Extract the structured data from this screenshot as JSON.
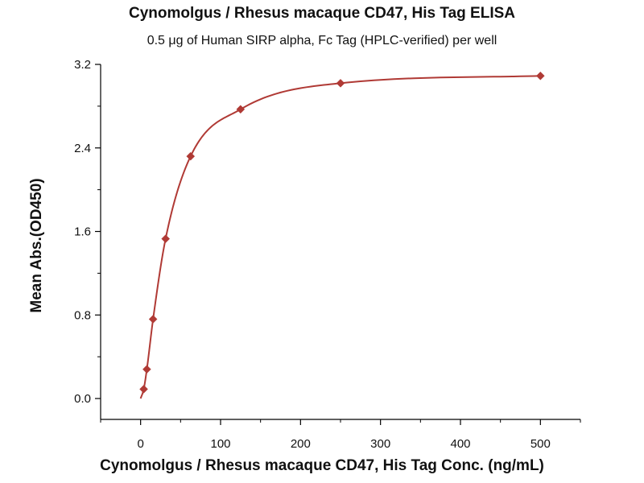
{
  "chart_data": {
    "type": "scatter",
    "title": "Cynomolgus / Rhesus macaque CD47, His Tag ELISA",
    "subtitle": "0.5 μg of Human SIRP alpha, Fc Tag (HPLC-verified) per well",
    "xlabel": "Cynomolgus / Rhesus macaque CD47, His Tag Conc. (ng/mL)",
    "ylabel": "Mean Abs.(OD450)",
    "xlim": [
      -50,
      550
    ],
    "ylim": [
      -0.2,
      3.2
    ],
    "x_ticks": [
      0,
      100,
      200,
      300,
      400,
      500
    ],
    "y_ticks": [
      0.0,
      0.8,
      1.6,
      2.4,
      3.2
    ],
    "x_tick_labels": [
      "0",
      "100",
      "200",
      "300",
      "400",
      "500"
    ],
    "y_tick_labels": [
      "0.0",
      "0.8",
      "1.6",
      "2.4",
      "3.2"
    ],
    "series": [
      {
        "x": [
          3.9,
          7.8,
          15.6,
          31.25,
          62.5,
          125,
          250,
          500
        ],
        "y": [
          0.09,
          0.28,
          0.76,
          1.53,
          2.32,
          2.77,
          3.02,
          3.09
        ],
        "fit": "4PL"
      }
    ],
    "colors": {
      "series": "#b03a35",
      "axis": "#000000"
    },
    "grid": false,
    "legend": "none"
  }
}
